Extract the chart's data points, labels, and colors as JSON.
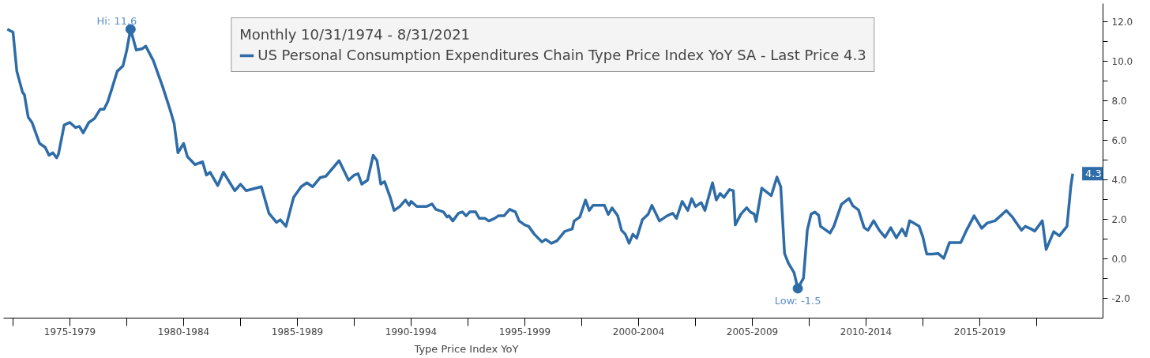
{
  "chart_data": {
    "type": "line",
    "legend_title": "Monthly 10/31/1974 - 8/31/2021",
    "legend": "top",
    "grid": false,
    "marker": "none",
    "line_style": "solid",
    "xlim": [
      "1974-08",
      "2022-12"
    ],
    "ylim": [
      -3.0,
      12.9
    ],
    "xticks": [
      {
        "value": "1975-01",
        "label": null
      },
      {
        "value": "1977-07",
        "label": "1975-1979"
      },
      {
        "value": "1980-01",
        "label": null
      },
      {
        "value": "1982-07",
        "label": "1980-1984"
      },
      {
        "value": "1985-01",
        "label": null
      },
      {
        "value": "1987-07",
        "label": "1985-1989"
      },
      {
        "value": "1990-01",
        "label": null
      },
      {
        "value": "1992-07",
        "label": "1990-1994"
      },
      {
        "value": "1995-01",
        "label": null
      },
      {
        "value": "1997-07",
        "label": "1995-1999"
      },
      {
        "value": "2000-01",
        "label": null
      },
      {
        "value": "2002-07",
        "label": "2000-2004"
      },
      {
        "value": "2005-01",
        "label": null
      },
      {
        "value": "2007-07",
        "label": "2005-2009"
      },
      {
        "value": "2010-01",
        "label": null
      },
      {
        "value": "2012-07",
        "label": "2010-2014"
      },
      {
        "value": "2015-01",
        "label": null
      },
      {
        "value": "2017-07",
        "label": "2015-2019"
      },
      {
        "value": "2020-01",
        "label": null
      }
    ],
    "yticks": [
      {
        "value": -2,
        "label": "-2.0"
      },
      {
        "value": -1,
        "label": null
      },
      {
        "value": 0,
        "label": "0.0"
      },
      {
        "value": 1,
        "label": null
      },
      {
        "value": 2,
        "label": "2.0"
      },
      {
        "value": 3,
        "label": null
      },
      {
        "value": 4,
        "label": "4.0"
      },
      {
        "value": 5,
        "label": null
      },
      {
        "value": 6,
        "label": "6.0"
      },
      {
        "value": 7,
        "label": null
      },
      {
        "value": 8,
        "label": "8.0"
      },
      {
        "value": 9,
        "label": null
      },
      {
        "value": 10,
        "label": "10.0"
      },
      {
        "value": 11,
        "label": null
      },
      {
        "value": 12,
        "label": "12.0"
      }
    ],
    "annotations": [
      {
        "text": "Hi: 11.6",
        "x": "1980-03",
        "y": 11.6
      },
      {
        "text": "Low: -1.5",
        "x": "2009-07",
        "y": -1.5
      },
      "4.3",
      "Type Price Index YoY"
    ],
    "series": [
      {
        "name": "US Personal Consumption Expenditures Chain Type Price Index YoY SA - Last Price 4.3",
        "color": "#2e6ca8",
        "x": [
          "1974-10",
          "1975-01",
          "1975-03",
          "1975-06",
          "1975-07",
          "1975-09",
          "1975-11",
          "1976-03",
          "1976-06",
          "1976-08",
          "1976-10",
          "1976-12",
          "1977-01",
          "1977-04",
          "1977-07",
          "1977-10",
          "1977-12",
          "1978-02",
          "1978-05",
          "1978-08",
          "1978-11",
          "1979-01",
          "1979-03",
          "1979-05",
          "1979-08",
          "1979-11",
          "1980-01",
          "1980-03",
          "1980-06",
          "1980-09",
          "1980-11",
          "1981-03",
          "1981-08",
          "1981-12",
          "1982-02",
          "1982-04",
          "1982-07",
          "1982-09",
          "1983-01",
          "1983-05",
          "1983-07",
          "1983-09",
          "1984-01",
          "1984-04",
          "1984-10",
          "1985-01",
          "1985-04",
          "1985-12",
          "1986-04",
          "1986-08",
          "1986-10",
          "1987-01",
          "1987-05",
          "1987-09",
          "1987-12",
          "1988-03",
          "1988-07",
          "1988-10",
          "1989-05",
          "1989-10",
          "1990-01",
          "1990-03",
          "1990-05",
          "1990-08",
          "1990-11",
          "1991-01",
          "1991-03",
          "1991-05",
          "1991-08",
          "1991-10",
          "1992-01",
          "1992-04",
          "1992-06",
          "1992-07",
          "1992-10",
          "1993-03",
          "1993-06",
          "1993-08",
          "1993-12",
          "1994-02",
          "1994-03",
          "1994-05",
          "1994-08",
          "1994-10",
          "1994-12",
          "1995-02",
          "1995-05",
          "1995-07",
          "1995-10",
          "1995-12",
          "1996-03",
          "1996-05",
          "1996-08",
          "1996-11",
          "1997-02",
          "1997-04",
          "1997-07",
          "1997-09",
          "1997-12",
          "1998-04",
          "1998-06",
          "1998-09",
          "1998-12",
          "1999-04",
          "1999-08",
          "1999-09",
          "1999-12",
          "2000-03",
          "2000-05",
          "2000-07",
          "2001-01",
          "2001-03",
          "2001-05",
          "2001-08",
          "2001-10",
          "2001-12",
          "2002-02",
          "2002-04",
          "2002-06",
          "2002-09",
          "2002-12",
          "2003-02",
          "2003-06",
          "2003-10",
          "2004-01",
          "2004-03",
          "2004-06",
          "2004-09",
          "2004-11",
          "2005-01",
          "2005-04",
          "2005-06",
          "2005-10",
          "2005-12",
          "2006-02",
          "2006-04",
          "2006-07",
          "2006-09",
          "2006-10",
          "2007-01",
          "2007-04",
          "2007-06",
          "2007-08",
          "2007-09",
          "2007-12",
          "2008-05",
          "2008-08",
          "2008-10",
          "2008-12",
          "2009-02",
          "2009-05",
          "2009-07",
          "2009-10",
          "2009-12",
          "2010-02",
          "2010-04",
          "2010-06",
          "2010-07",
          "2010-12",
          "2011-02",
          "2011-06",
          "2011-10",
          "2011-12",
          "2012-03",
          "2012-06",
          "2012-08",
          "2012-11",
          "2013-02",
          "2013-05",
          "2013-08",
          "2013-11",
          "2014-02",
          "2014-04",
          "2014-06",
          "2014-11",
          "2015-01",
          "2015-03",
          "2015-06",
          "2015-09",
          "2015-12",
          "2016-03",
          "2016-06",
          "2016-09",
          "2016-12",
          "2017-04",
          "2017-08",
          "2017-11",
          "2018-03",
          "2018-07",
          "2018-09",
          "2018-12",
          "2019-02",
          "2019-05",
          "2019-07",
          "2019-10",
          "2019-12",
          "2020-04",
          "2020-06",
          "2020-10",
          "2021-01",
          "2021-05",
          "2021-07",
          "2021-08"
        ],
        "values": [
          11.6,
          11.45,
          9.48,
          8.42,
          8.29,
          7.16,
          6.89,
          5.83,
          5.63,
          5.23,
          5.36,
          5.1,
          5.3,
          6.76,
          6.89,
          6.63,
          6.69,
          6.36,
          6.89,
          7.09,
          7.56,
          7.56,
          7.95,
          8.55,
          9.48,
          9.75,
          10.55,
          11.6,
          10.55,
          10.61,
          10.75,
          10.02,
          8.68,
          7.49,
          6.83,
          5.36,
          5.83,
          5.16,
          4.76,
          4.9,
          4.23,
          4.37,
          3.7,
          4.37,
          3.44,
          3.77,
          3.44,
          3.64,
          2.3,
          1.84,
          1.97,
          1.64,
          3.1,
          3.64,
          3.84,
          3.64,
          4.1,
          4.17,
          4.96,
          3.97,
          4.23,
          4.3,
          3.77,
          3.97,
          5.23,
          4.96,
          3.77,
          3.9,
          3.1,
          2.44,
          2.64,
          2.97,
          2.7,
          2.9,
          2.64,
          2.64,
          2.77,
          2.5,
          2.37,
          2.11,
          2.17,
          1.91,
          2.3,
          2.37,
          2.17,
          2.37,
          2.37,
          2.04,
          2.04,
          1.91,
          2.04,
          2.17,
          2.17,
          2.5,
          2.37,
          1.91,
          1.71,
          1.64,
          1.24,
          0.85,
          0.98,
          0.78,
          0.91,
          1.38,
          1.51,
          1.91,
          2.11,
          2.97,
          2.44,
          2.7,
          2.7,
          2.24,
          2.57,
          2.17,
          1.44,
          1.24,
          0.78,
          1.24,
          1.04,
          1.97,
          2.24,
          2.7,
          1.91,
          2.17,
          2.3,
          2.04,
          2.9,
          2.44,
          3.04,
          2.64,
          2.84,
          2.44,
          3.84,
          2.97,
          3.3,
          3.1,
          3.5,
          3.44,
          1.71,
          2.26,
          2.58,
          2.36,
          2.26,
          1.89,
          3.57,
          3.19,
          4.13,
          3.64,
          0.27,
          -0.22,
          -0.7,
          -1.5,
          -0.98,
          1.44,
          2.26,
          2.36,
          2.2,
          1.64,
          1.3,
          1.64,
          2.75,
          3.05,
          2.68,
          2.47,
          1.57,
          1.44,
          1.92,
          1.44,
          1.09,
          1.57,
          1.06,
          1.51,
          1.16,
          1.92,
          1.64,
          1.09,
          0.24,
          0.24,
          0.27,
          0.02,
          0.82,
          0.82,
          0.82,
          1.44,
          2.17,
          1.54,
          1.81,
          1.92,
          2.26,
          2.44,
          2.13,
          1.85,
          1.44,
          1.64,
          1.51,
          1.4,
          1.92,
          0.47,
          1.37,
          1.16,
          1.64,
          3.64,
          4.3
        ]
      }
    ]
  }
}
